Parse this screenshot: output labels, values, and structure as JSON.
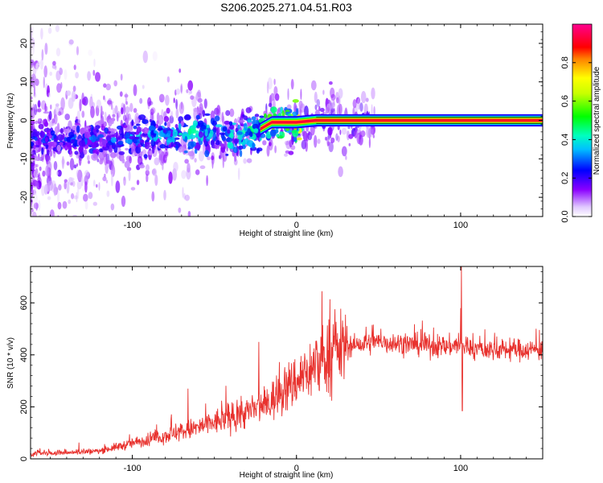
{
  "figure": {
    "title": "S206.2025.271.04.51.R03"
  },
  "chart_data": [
    {
      "type": "heatmap",
      "title": "S206.2025.271.04.51.R03",
      "xlabel": "Height of straight line (km)",
      "ylabel": "Frequency (Hz)",
      "xlim": [
        -162,
        150
      ],
      "ylim": [
        -25,
        25
      ],
      "x_ticks": [
        -100,
        0,
        100
      ],
      "y_ticks": [
        -20,
        -10,
        0,
        10,
        20
      ],
      "x_tick_labels": [
        "-100",
        "0",
        "100"
      ],
      "y_tick_labels": [
        "-20",
        "-10",
        "0",
        "10",
        "20"
      ],
      "colorbar": {
        "label": "Normalized spectral amplitude",
        "range": [
          0,
          1
        ],
        "ticks": [
          0,
          0.2,
          0.4,
          0.6,
          0.8
        ],
        "tick_labels": [
          "0.0",
          "0.2",
          "0.4",
          "0.6",
          "0.8"
        ],
        "colors": [
          "#ffffff",
          "#d9b3ff",
          "#7a00ff",
          "#0000ff",
          "#00ffff",
          "#00ff00",
          "#ffff00",
          "#ff0000",
          "#ff0090"
        ]
      },
      "ridge": {
        "description_points_height_km": [
          -162,
          -120,
          -80,
          -60,
          -40,
          -25,
          -15,
          0,
          12,
          100,
          150
        ],
        "frequency_hz": [
          -5,
          -5,
          -4,
          -3,
          -4.5,
          -3,
          -0.5,
          -0.5,
          0,
          0,
          0
        ],
        "amplitude": [
          0.25,
          0.3,
          0.35,
          0.4,
          0.4,
          0.45,
          0.6,
          0.7,
          0.95,
          0.95,
          0.95
        ]
      }
    },
    {
      "type": "line",
      "xlabel": "Height of straight line (km)",
      "ylabel": "SNR (10 * v/v)",
      "xlim": [
        -162,
        150
      ],
      "ylim": [
        0,
        740
      ],
      "x_ticks": [
        -100,
        0,
        100
      ],
      "y_ticks": [
        0,
        200,
        400,
        600
      ],
      "x_tick_labels": [
        "-100",
        "0",
        "100"
      ],
      "y_tick_labels": [
        "0",
        "200",
        "400",
        "600"
      ],
      "color": "#e8322e",
      "trend": {
        "x": [
          -162,
          -140,
          -120,
          -100,
          -80,
          -60,
          -40,
          -20,
          -10,
          0,
          10,
          20,
          30,
          50,
          70,
          90,
          100,
          110,
          130,
          150
        ],
        "y": [
          20,
          25,
          30,
          60,
          90,
          120,
          160,
          200,
          250,
          300,
          350,
          400,
          430,
          450,
          440,
          430,
          440,
          420,
          420,
          420
        ]
      },
      "spikes": [
        {
          "x": 100.5,
          "y": 740
        },
        {
          "x": 100,
          "y": 580
        },
        {
          "x": 101,
          "y": 185
        },
        {
          "x": -66,
          "y": 270
        },
        {
          "x": -23,
          "y": 450
        }
      ]
    }
  ]
}
